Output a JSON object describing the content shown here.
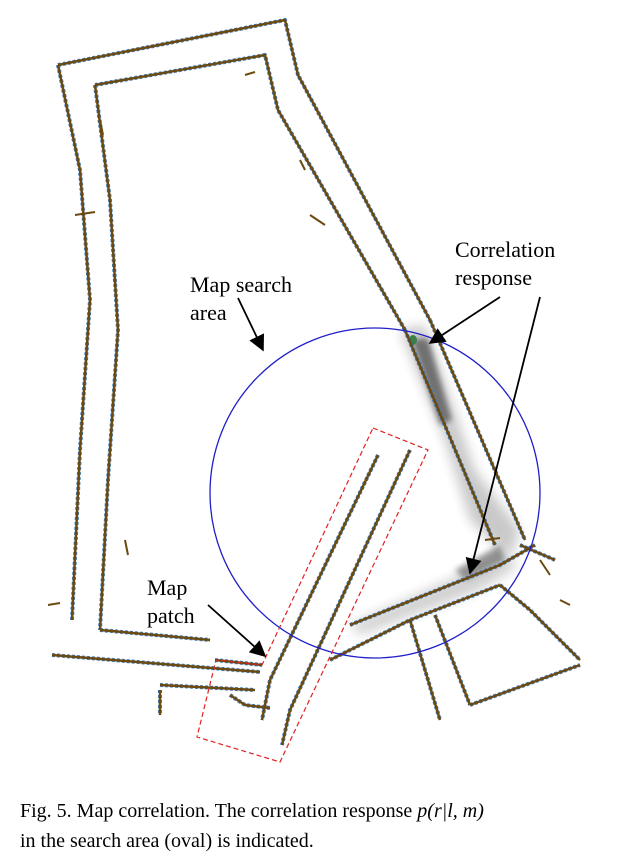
{
  "labels": {
    "correlation_line1": "Correlation",
    "correlation_line2": "response",
    "search_line1": "Map search",
    "search_line2": "area",
    "patch_line1": "Map",
    "patch_line2": "patch"
  },
  "caption": {
    "line1_text": "Fig. 5. Map correlation. The correlation response ",
    "formula": "p(r|l, m)",
    "line2_text": "in the search area (oval) is indicated."
  },
  "colors": {
    "wall": "#6b4a12",
    "wall_edge": "#2a6fbd",
    "search_oval": "#1f1fc8",
    "patch_box": "#e02020",
    "response": "#333333"
  }
}
